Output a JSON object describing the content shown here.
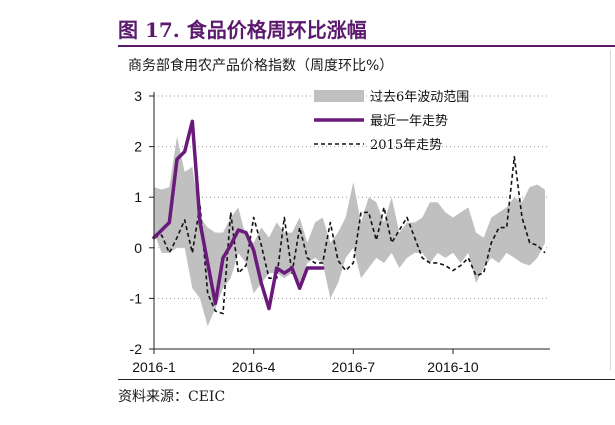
{
  "figure_title": "图 17. 食品价格周环比涨幅",
  "source_note": "资料来源：CEIC",
  "chart_data": {
    "type": "line",
    "title": "商务部食用农产品价格指数（周度环比%）",
    "xlabel": "",
    "ylabel": "",
    "ylim": [
      -2,
      3
    ],
    "yticks": [
      -2,
      -1,
      0,
      1,
      2,
      3
    ],
    "xlim": [
      1,
      52
    ],
    "xticks": [
      {
        "x": 1,
        "label": "2016-1"
      },
      {
        "x": 14,
        "label": "2016-4"
      },
      {
        "x": 27,
        "label": "2016-7"
      },
      {
        "x": 40,
        "label": "2016-10"
      }
    ],
    "grid": "horizontal dotted",
    "legend_position": "top-right",
    "colors": {
      "band": "#c0c0c0",
      "latest": "#6a1a7a",
      "y2015": "#111111"
    },
    "series": [
      {
        "name": "过去6年波动范围",
        "kind": "band",
        "x": [
          1,
          2,
          3,
          4,
          5,
          6,
          7,
          8,
          9,
          10,
          11,
          12,
          13,
          14,
          15,
          16,
          17,
          18,
          19,
          20,
          21,
          22,
          23,
          24,
          25,
          26,
          27,
          28,
          29,
          30,
          31,
          32,
          33,
          34,
          35,
          36,
          37,
          38,
          39,
          40,
          41,
          42,
          43,
          44,
          45,
          46,
          47,
          48,
          49,
          50,
          51,
          52
        ],
        "upper": [
          1.2,
          1.15,
          1.2,
          2.2,
          1.5,
          1.6,
          0.6,
          0.4,
          0.3,
          0.3,
          0.6,
          0.8,
          0.2,
          0.1,
          0.4,
          0.2,
          0.5,
          0.3,
          0.3,
          0.6,
          0.1,
          0.5,
          0.6,
          0.1,
          0.3,
          0.6,
          1.3,
          0.5,
          1.0,
          0.9,
          0.5,
          1.0,
          0.3,
          0.5,
          0.5,
          0.6,
          0.9,
          0.9,
          0.7,
          0.6,
          0.7,
          0.8,
          0.3,
          0.2,
          0.6,
          0.7,
          0.8,
          1.0,
          0.9,
          1.2,
          1.25,
          1.15
        ],
        "lower": [
          0.3,
          -0.1,
          -0.1,
          0.0,
          0.0,
          -0.8,
          -1.0,
          -1.55,
          -1.2,
          -0.8,
          -0.6,
          -0.1,
          -0.3,
          -0.9,
          -0.7,
          -0.5,
          -0.5,
          -0.6,
          -0.5,
          -0.7,
          -0.3,
          -0.2,
          -0.3,
          -1.0,
          -0.7,
          -0.2,
          0.0,
          -0.6,
          -0.4,
          -0.2,
          -0.3,
          -0.1,
          -0.4,
          -0.2,
          -0.1,
          -0.1,
          -0.3,
          -0.1,
          -0.2,
          -0.1,
          -0.3,
          -0.1,
          -0.7,
          -0.4,
          -0.2,
          -0.3,
          -0.1,
          -0.2,
          -0.3,
          -0.35,
          -0.2,
          0.1
        ]
      },
      {
        "name": "最近一年走势",
        "kind": "line",
        "x": [
          1,
          2,
          3,
          4,
          5,
          6,
          7,
          8,
          9,
          10,
          11,
          12,
          13,
          14,
          15,
          16,
          17,
          18,
          19,
          20,
          21,
          22,
          23
        ],
        "values": [
          0.2,
          0.35,
          0.5,
          1.75,
          1.9,
          2.5,
          0.5,
          -0.3,
          -1.1,
          -0.2,
          0.05,
          0.35,
          0.3,
          -0.05,
          -0.7,
          -1.2,
          -0.4,
          -0.5,
          -0.4,
          -0.8,
          -0.4,
          -0.4,
          -0.4
        ]
      },
      {
        "name": "2015年走势",
        "kind": "dashed",
        "x": [
          1,
          2,
          3,
          4,
          5,
          6,
          7,
          8,
          9,
          10,
          11,
          12,
          13,
          14,
          15,
          16,
          17,
          18,
          19,
          20,
          21,
          22,
          23,
          24,
          25,
          26,
          27,
          28,
          29,
          30,
          31,
          32,
          33,
          34,
          35,
          36,
          37,
          38,
          39,
          40,
          41,
          42,
          43,
          44,
          45,
          46,
          47,
          48,
          49,
          50,
          51,
          52
        ],
        "values": [
          0.2,
          0.25,
          -0.1,
          0.2,
          0.55,
          -0.1,
          0.85,
          -0.9,
          -1.25,
          -1.3,
          0.7,
          -0.5,
          -0.35,
          0.6,
          0.05,
          -0.6,
          -0.6,
          0.6,
          -0.5,
          0.4,
          -0.2,
          -0.3,
          -0.3,
          0.5,
          -0.25,
          -0.45,
          -0.3,
          0.7,
          0.7,
          0.15,
          0.8,
          0.1,
          0.35,
          0.6,
          0.2,
          -0.2,
          -0.3,
          -0.3,
          -0.35,
          -0.45,
          -0.35,
          -0.2,
          -0.55,
          -0.5,
          0.1,
          0.4,
          0.4,
          1.8,
          0.6,
          0.1,
          0.05,
          -0.1
        ]
      }
    ]
  }
}
